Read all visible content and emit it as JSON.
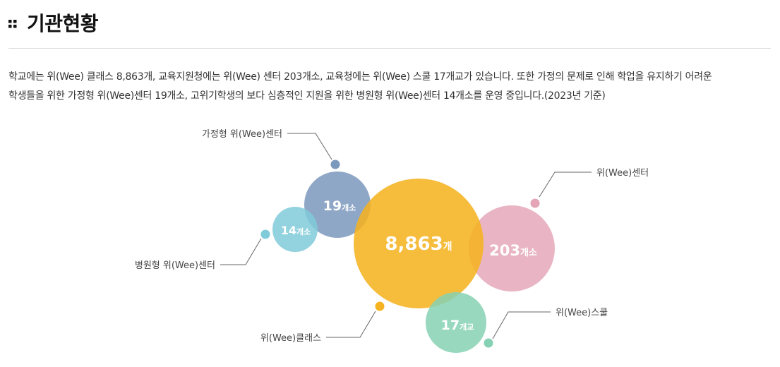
{
  "heading": {
    "title": "기관현황",
    "icon": "dots-grid-icon"
  },
  "description": {
    "line1": "학교에는 위(Wee) 클래스 8,863개, 교육지원청에는 위(Wee) 센터 203개소, 교육청에는 위(Wee) 스쿨 17개교가 있습니다. 또한 가정의 문제로 인해 학업을 유지하기 어려운",
    "line2": "학생들을 위한 가정형 위(Wee)센터 19개소, 고위기학생의 보다 심층적인 지원을 위한 병원형 위(Wee)센터 14개소를 운영 중입니다.(2023년 기준)"
  },
  "bubbles": [
    {
      "key": "class",
      "label": "위(Wee)클래스",
      "value": "8,863",
      "unit": "개",
      "color": "#f5b321"
    },
    {
      "key": "center",
      "label": "위(Wee)센터",
      "value": "203",
      "unit": "개소",
      "color": "#e4a5b7"
    },
    {
      "key": "home",
      "label": "가정형 위(Wee)센터",
      "value": "19",
      "unit": "개소",
      "color": "#7b98bd"
    },
    {
      "key": "hospital",
      "label": "병원형 위(Wee)센터",
      "value": "14",
      "unit": "개소",
      "color": "#80cad9"
    },
    {
      "key": "school",
      "label": "위(Wee)스쿨",
      "value": "17",
      "unit": "개교",
      "color": "#86d1b3"
    }
  ]
}
